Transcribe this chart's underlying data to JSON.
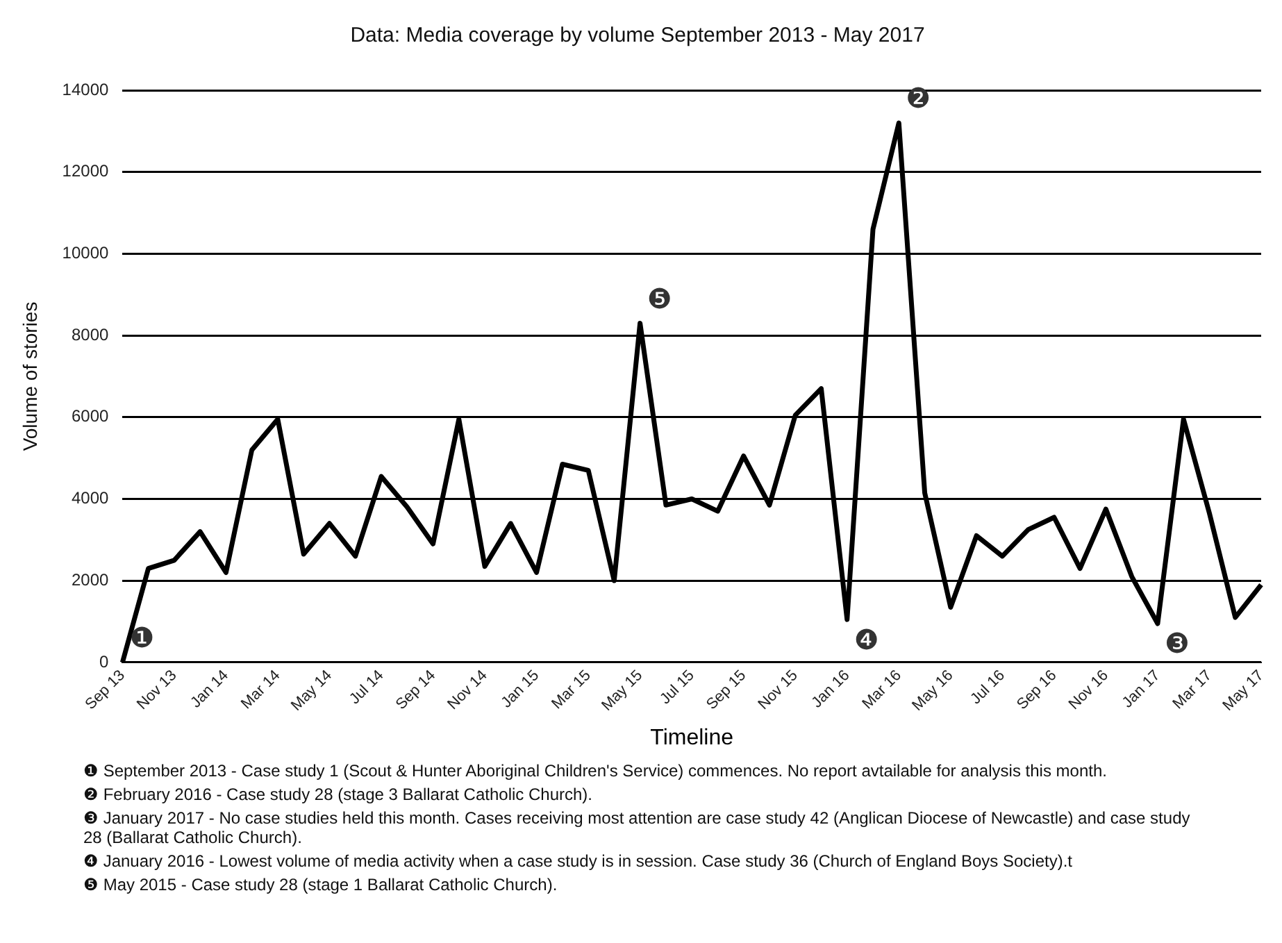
{
  "chart_data": {
    "type": "line",
    "title": "Data: Media coverage by volume September 2013 - May 2017",
    "xlabel": "Timeline",
    "ylabel": "Volume of stories",
    "categories": [
      "Sep 13",
      null,
      "Nov 13",
      null,
      "Jan 14",
      null,
      "Mar 14",
      null,
      "May 14",
      null,
      "Jul 14",
      null,
      "Sep 14",
      null,
      "Nov 14",
      null,
      "Jan 15",
      null,
      "Mar 15",
      null,
      "May 15",
      null,
      "Jul 15",
      null,
      "Sep 15",
      null,
      "Nov 15",
      null,
      "Jan 16",
      null,
      "Mar 16",
      null,
      "May 16",
      null,
      "Jul 16",
      null,
      "Sep 16",
      null,
      "Nov 16",
      null,
      "Jan 17",
      null,
      "Mar 17",
      null,
      "May 17"
    ],
    "series": [
      {
        "color": "#000000",
        "values": [
          0,
          2300,
          2500,
          3200,
          2200,
          5200,
          5950,
          2650,
          3400,
          2600,
          4550,
          3800,
          2900,
          5950,
          2350,
          3400,
          2200,
          4850,
          4700,
          2000,
          8300,
          3850,
          4000,
          3700,
          5050,
          3850,
          6050,
          6700,
          1050,
          10600,
          13200,
          4150,
          1350,
          3100,
          2600,
          3250,
          3550,
          2300,
          3750,
          2100,
          950,
          5950,
          3650,
          1100,
          1900
        ]
      }
    ],
    "ylim": [
      0,
      14000
    ],
    "yticks": [
      0,
      2000,
      4000,
      6000,
      8000,
      10000,
      12000,
      14000
    ],
    "grid": "y",
    "legend": false,
    "marker": "none",
    "line_style": "solid",
    "annotations": [
      {
        "text": "❶",
        "x": "Sep 13",
        "y": 0
      },
      {
        "text": "❷",
        "x": "Mar 16",
        "y": 13200
      },
      {
        "text": "❸",
        "x": "Jan 17",
        "y": 950
      },
      {
        "text": "❹",
        "x": "Jan 16",
        "y": 1050
      },
      {
        "text": "❺",
        "x": "May 15",
        "y": 8300
      },
      "❶ September 2013 - Case study 1 (Scout & Hunter Aboriginal Children's Service) commences. No report avtailable for analysis this month.",
      "❷ February 2016 -  Case study 28 (stage 3 Ballarat Catholic Church).",
      "❸ January 2017 - No case studies held this month. Cases receiving most attention are case study 42 (Anglican Diocese of Newcastle) and case study 28 (Ballarat Catholic Church).",
      "❹ January 2016 - Lowest volume of media activity when a case study is in session. Case study 36 (Church of England Boys Society).t",
      "❺ May 2015 - Case study 28 (stage 1 Ballarat Catholic Church)."
    ]
  }
}
